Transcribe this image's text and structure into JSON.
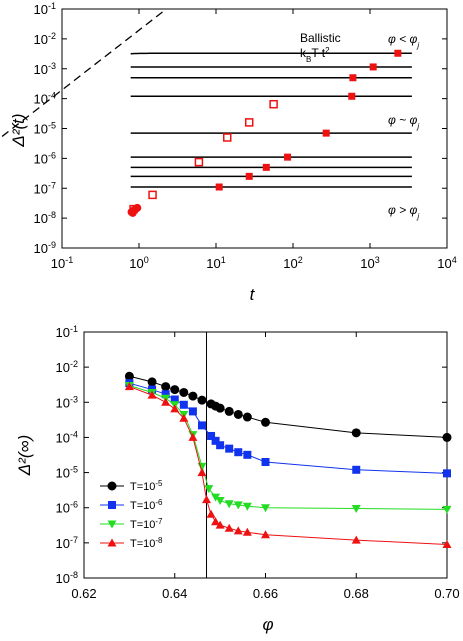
{
  "chart_data": [
    {
      "type": "line",
      "xscale": "log",
      "yscale": "log",
      "xlim": [
        0.1,
        10000
      ],
      "ylim": [
        1e-09,
        0.1
      ],
      "xlabel": "t",
      "ylabel": "Δ²(t)",
      "x_ticks": [
        {
          "value": 0.1,
          "label": "10",
          "exp": "-1"
        },
        {
          "value": 1,
          "label": "10",
          "exp": "0"
        },
        {
          "value": 10,
          "label": "10",
          "exp": "1"
        },
        {
          "value": 100,
          "label": "10",
          "exp": "2"
        },
        {
          "value": 1000,
          "label": "10",
          "exp": "3"
        },
        {
          "value": 10000,
          "label": "10",
          "exp": "4"
        }
      ],
      "y_ticks": [
        {
          "value": 1e-09,
          "label": "10",
          "exp": "-9"
        },
        {
          "value": 1e-08,
          "label": "10",
          "exp": "-8"
        },
        {
          "value": 1e-07,
          "label": "10",
          "exp": "-7"
        },
        {
          "value": 1e-06,
          "label": "10",
          "exp": "-6"
        },
        {
          "value": 1e-05,
          "label": "10",
          "exp": "-5"
        },
        {
          "value": 0.0001,
          "label": "10",
          "exp": "-4"
        },
        {
          "value": 0.001,
          "label": "10",
          "exp": "-3"
        },
        {
          "value": 0.01,
          "label": "10",
          "exp": "-2"
        },
        {
          "value": 0.1,
          "label": "10",
          "exp": "-1"
        }
      ],
      "annotations": {
        "ballistic_line1": "Ballistic",
        "ballistic_line2": "kBT t²",
        "phi_lt": "φ < φj",
        "phi_sim": "φ ~ φj",
        "phi_gt": "φ > φj"
      },
      "ballistic_reference": {
        "coefficient": 0.0195,
        "exponent": 2
      },
      "curves": [
        {
          "plateau": 0.0033,
          "marker_t": 2300
        },
        {
          "plateau": 0.00115,
          "marker_t": 1100
        },
        {
          "plateau": 0.0005,
          "marker_t": 600
        },
        {
          "plateau": 0.00012,
          "marker_t": 580
        },
        {
          "plateau": 7e-06,
          "marker_t": 270
        },
        {
          "plateau": 1.1e-06,
          "marker_t": 85
        },
        {
          "plateau": 5e-07,
          "marker_t": 45
        },
        {
          "plateau": 2.5e-07,
          "marker_t": 27
        },
        {
          "plateau": 1.1e-07,
          "marker_t": 11
        }
      ],
      "open_markers": [
        {
          "x": 6,
          "y": 7.5e-07
        },
        {
          "x": 14,
          "y": 5e-06
        },
        {
          "x": 27,
          "y": 1.6e-05
        },
        {
          "x": 56,
          "y": 6.5e-05
        },
        {
          "x": 1.5,
          "y": 6e-08
        },
        {
          "x": 0.85,
          "y": 2e-08
        }
      ],
      "marker_color": "#ee1111"
    },
    {
      "type": "line",
      "yscale": "log",
      "xlim": [
        0.62,
        0.7
      ],
      "ylim": [
        1e-08,
        0.1
      ],
      "xlabel": "φ",
      "ylabel": "Δ²(∞)",
      "x_ticks": [
        "0.62",
        "0.64",
        "0.66",
        "0.68",
        "0.70"
      ],
      "y_ticks": [
        {
          "value": 1e-08,
          "label": "10",
          "exp": "-8"
        },
        {
          "value": 1e-07,
          "label": "10",
          "exp": "-7"
        },
        {
          "value": 1e-06,
          "label": "10",
          "exp": "-6"
        },
        {
          "value": 1e-05,
          "label": "10",
          "exp": "-5"
        },
        {
          "value": 0.0001,
          "label": "10",
          "exp": "-4"
        },
        {
          "value": 0.001,
          "label": "10",
          "exp": "-3"
        },
        {
          "value": 0.01,
          "label": "10",
          "exp": "-2"
        },
        {
          "value": 0.1,
          "label": "10",
          "exp": "-1"
        }
      ],
      "vertical_line_x": 0.647,
      "legend_position": "left",
      "series": [
        {
          "name": "T=10",
          "exp": "-5",
          "color": "#000000",
          "marker": "circle",
          "x": [
            0.63,
            0.635,
            0.638,
            0.64,
            0.642,
            0.644,
            0.646,
            0.648,
            0.649,
            0.65,
            0.652,
            0.654,
            0.656,
            0.66,
            0.68,
            0.7
          ],
          "y": [
            0.0055,
            0.0038,
            0.0028,
            0.0023,
            0.0019,
            0.0015,
            0.00115,
            0.0009,
            0.00078,
            0.00068,
            0.00055,
            0.00045,
            0.00038,
            0.00027,
            0.000135,
            0.0001
          ]
        },
        {
          "name": "T=10",
          "exp": "-6",
          "color": "#1133ee",
          "marker": "square",
          "x": [
            0.63,
            0.635,
            0.638,
            0.64,
            0.642,
            0.644,
            0.646,
            0.648,
            0.649,
            0.65,
            0.652,
            0.654,
            0.656,
            0.66,
            0.68,
            0.7
          ],
          "y": [
            0.0035,
            0.0023,
            0.0017,
            0.0012,
            0.00085,
            0.00055,
            0.00022,
            0.00011,
            8e-05,
            6e-05,
            4.8e-05,
            3.8e-05,
            3.2e-05,
            2e-05,
            1.2e-05,
            9.5e-06
          ]
        },
        {
          "name": "T=10",
          "exp": "-7",
          "color": "#22dd22",
          "marker": "triangle-down",
          "x": [
            0.63,
            0.635,
            0.638,
            0.64,
            0.642,
            0.644,
            0.646,
            0.6475,
            0.649,
            0.65,
            0.652,
            0.654,
            0.656,
            0.66,
            0.68,
            0.7
          ],
          "y": [
            0.003,
            0.0019,
            0.0013,
            0.00085,
            0.00045,
            0.00012,
            1.5e-05,
            3.5e-06,
            2e-06,
            1.6e-06,
            1.3e-06,
            1.2e-06,
            1.1e-06,
            1e-06,
            9.5e-07,
            9e-07
          ]
        },
        {
          "name": "T=10",
          "exp": "-8",
          "color": "#ee1111",
          "marker": "triangle-up",
          "x": [
            0.63,
            0.635,
            0.638,
            0.64,
            0.642,
            0.644,
            0.646,
            0.647,
            0.648,
            0.649,
            0.65,
            0.652,
            0.654,
            0.656,
            0.66,
            0.68,
            0.7
          ],
          "y": [
            0.0028,
            0.0016,
            0.001,
            0.00065,
            0.00035,
            0.0001,
            1e-05,
            1.7e-06,
            6.5e-07,
            4e-07,
            3.2e-07,
            2.6e-07,
            2.2e-07,
            2e-07,
            1.7e-07,
            1.2e-07,
            9e-08
          ]
        }
      ]
    }
  ]
}
